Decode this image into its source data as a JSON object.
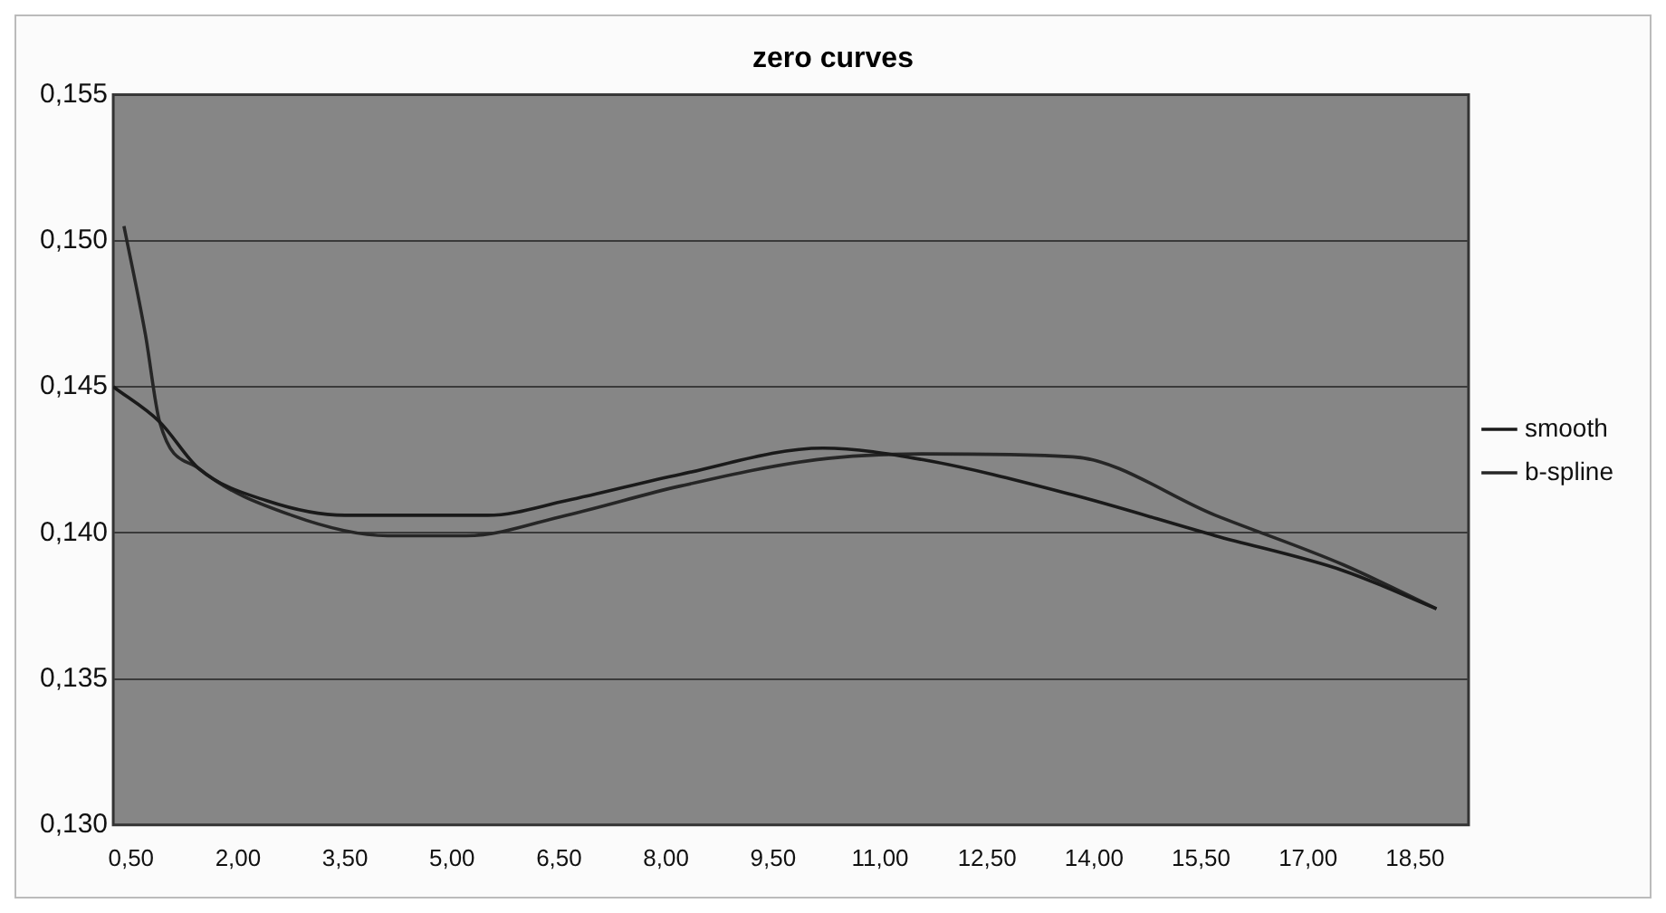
{
  "chart_data": {
    "type": "line",
    "title": "zero curves",
    "xlim": [
      0.25,
      19.25
    ],
    "xticks": [
      {
        "value": 0.5,
        "label": "0,50"
      },
      {
        "value": 2,
        "label": "2,00"
      },
      {
        "value": 3.5,
        "label": "3,50"
      },
      {
        "value": 5,
        "label": "5,00"
      },
      {
        "value": 6.5,
        "label": "6,50"
      },
      {
        "value": 8,
        "label": "8,00"
      },
      {
        "value": 9.5,
        "label": "9,50"
      },
      {
        "value": 11,
        "label": "11,00"
      },
      {
        "value": 12.5,
        "label": "12,50"
      },
      {
        "value": 14,
        "label": "14,00"
      },
      {
        "value": 15.5,
        "label": "15,50"
      },
      {
        "value": 17,
        "label": "17,00"
      },
      {
        "value": 18.5,
        "label": "18,50"
      }
    ],
    "ylim": [
      0.13,
      0.155
    ],
    "yticks": [
      {
        "value": 0.13,
        "label": "0,130"
      },
      {
        "value": 0.135,
        "label": "0,135"
      },
      {
        "value": 0.14,
        "label": "0,140"
      },
      {
        "value": 0.145,
        "label": "0,145"
      },
      {
        "value": 0.15,
        "label": "0,150"
      },
      {
        "value": 0.155,
        "label": "0,155"
      }
    ],
    "grid": "y",
    "legend": "right",
    "marker": "none",
    "line_style": "solid",
    "series": [
      {
        "name": "smooth",
        "color": "#1a1a1a",
        "x": [
          0.25,
          0.9,
          1.45,
          2.4,
          3.5,
          5.5,
          6.6,
          8.2,
          10.2,
          11.6,
          13.7,
          15.7,
          17.5,
          18.8
        ],
        "values": [
          0.145,
          0.1438,
          0.1422,
          0.1411,
          0.1406,
          0.1406,
          0.1411,
          0.142,
          0.1429,
          0.1425,
          0.1413,
          0.1399,
          0.1387,
          0.1374
        ]
      },
      {
        "name": "b-spline",
        "color": "#262626",
        "x": [
          0.4,
          0.7,
          0.9,
          1.45,
          2.75,
          4.1,
          5.2,
          6.6,
          8.2,
          10.1,
          11.6,
          13.7,
          15.7,
          17.5,
          18.8
        ],
        "values": [
          0.1505,
          0.1468,
          0.1438,
          0.1422,
          0.1406,
          0.1399,
          0.1399,
          0.1406,
          0.1416,
          0.1425,
          0.1427,
          0.1426,
          0.1406,
          0.1389,
          0.1374
        ]
      }
    ]
  }
}
